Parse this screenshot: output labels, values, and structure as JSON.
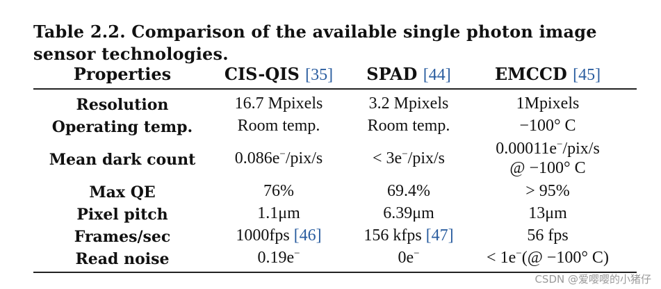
{
  "caption": "Table 2.2. Comparison of the available single photon image sensor technologies.",
  "header": {
    "properties": "Properties",
    "col1": {
      "name": "CIS-QIS",
      "ref": "[35]"
    },
    "col2": {
      "name": "SPAD",
      "ref": "[44]"
    },
    "col3": {
      "name": "EMCCD",
      "ref": "[45]"
    }
  },
  "rows": [
    {
      "property": "Resolution",
      "cis": "16.7 Mpixels",
      "spad": "3.2 Mpixels",
      "emccd": "1Mpixels"
    },
    {
      "property": "Operating temp.",
      "cis": "Room temp.",
      "spad": "Room temp.",
      "emccd": "−100° C"
    },
    {
      "property": "Mean dark count",
      "cis_pre": "0.086e",
      "cis_post": "/pix/s",
      "spad_pre": "< 3e",
      "spad_post": "/pix/s",
      "emccd_line1_pre": "0.00011e",
      "emccd_line1_post": "/pix/s",
      "emccd_line2": "@ −100° C"
    },
    {
      "property": "Max QE",
      "cis": "76%",
      "spad": "69.4%",
      "emccd": "> 95%"
    },
    {
      "property": "Pixel pitch",
      "cis": "1.1μm",
      "spad": "6.39μm",
      "emccd": "13μm"
    },
    {
      "property": "Frames/sec",
      "cis": "1000fps",
      "cis_ref": "[46]",
      "spad": "156 kfps",
      "spad_ref": "[47]",
      "emccd": "56 fps"
    },
    {
      "property": "Read noise",
      "cis_pre": "0.19e",
      "spad_pre": "0e",
      "emccd_pre": "< 1e",
      "emccd_post": "(@ −100° C)"
    }
  ],
  "superscript": "−",
  "watermark": "CSDN @爱嘤嘤的小猪仔"
}
